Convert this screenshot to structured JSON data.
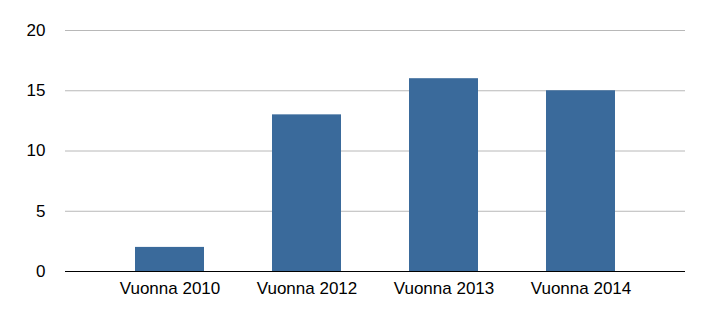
{
  "chart_data": {
    "type": "bar",
    "categories": [
      "Vuonna 2010",
      "Vuonna 2012",
      "Vuonna 2013",
      "Vuonna 2014"
    ],
    "values": [
      2,
      13,
      16,
      15
    ],
    "color": "#3a6a9b",
    "ylim": [
      0,
      20
    ],
    "yticks": [
      0,
      5,
      10,
      15,
      20
    ],
    "grid": true
  }
}
